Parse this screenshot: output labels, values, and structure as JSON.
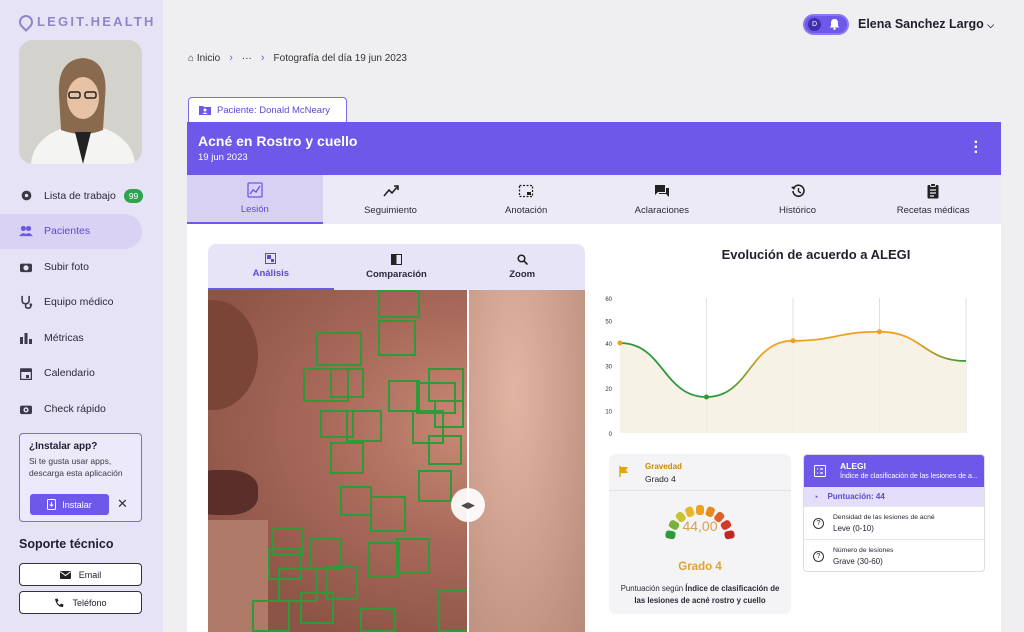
{
  "brand": "LEGIT.HEALTH",
  "sidebar": {
    "items": [
      {
        "label": "Lista de trabajo",
        "icon": "gear-icon",
        "badge": "99"
      },
      {
        "label": "Pacientes",
        "icon": "users-icon"
      },
      {
        "label": "Subir foto",
        "icon": "camera-icon"
      },
      {
        "label": "Equipo médico",
        "icon": "stethoscope-icon"
      },
      {
        "label": "Métricas",
        "icon": "bar-chart-icon"
      },
      {
        "label": "Calendario",
        "icon": "calendar-icon"
      },
      {
        "label": "Check rápido",
        "icon": "camera-check-icon"
      }
    ],
    "install": {
      "title": "¿Instalar app?",
      "desc": "Si te gusta usar apps, descarga esta aplicación",
      "button": "Instalar"
    },
    "support": {
      "title": "Soporte técnico",
      "email": "Email",
      "phone": "Teléfono"
    }
  },
  "topbar": {
    "toggle_letter": "D",
    "user": "Elena Sanchez Largo"
  },
  "breadcrumb": {
    "home": "Inicio",
    "ellipsis": "···",
    "current": "Fotografía del día 19 jun 2023"
  },
  "patient_tab": "Paciente: Donald McNeary",
  "header": {
    "title": "Acné en Rostro y cuello",
    "date": "19 jun 2023"
  },
  "tabs": [
    "Lesión",
    "Seguimiento",
    "Anotación",
    "Aclaraciones",
    "Histórico",
    "Recetas médicas"
  ],
  "image_tabs": [
    "Análisis",
    "Comparación",
    "Zoom"
  ],
  "chart_title": "Evolución de acuerdo a ALEGI",
  "chart_data": {
    "type": "line",
    "yticks": [
      "60",
      "50",
      "40",
      "30",
      "20",
      "10",
      "0"
    ],
    "ylim": [
      0,
      60
    ],
    "points": [
      40,
      16,
      41,
      45,
      32
    ],
    "grid": true,
    "colors": {
      "low": "#2e9a3a",
      "high": "#f0a020"
    }
  },
  "gravity_card": {
    "label": "Gravedad",
    "value": "Grado 4",
    "gauge_value": "44,00",
    "grade": "Grado 4",
    "caption_prefix": "Puntuación según ",
    "caption_bold": "Índice de clasificación de las lesiones de acné rostro y cuello"
  },
  "alegi_card": {
    "title": "ALEGI",
    "subtitle": "Índice de clasificación de las lesiones de a...",
    "score": "Puntuación: 44",
    "rows": [
      {
        "label": "Densidad de las lesiones de acné",
        "value": "Leve (0-10)"
      },
      {
        "label": "Número de lesiones",
        "value": "Grave (30-60)"
      }
    ]
  }
}
